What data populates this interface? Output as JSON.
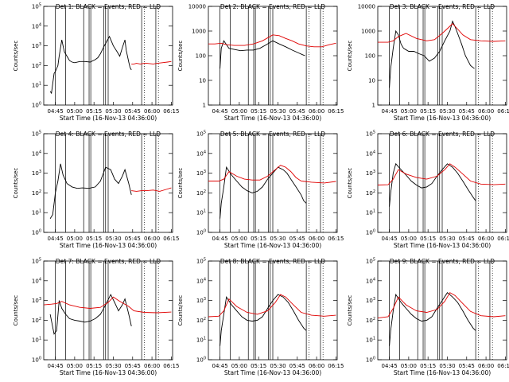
{
  "figure": {
    "xlabel": "Start Time (16-Nov-13 04:36:00)",
    "ylabel": "Counts/sec",
    "xticks": [
      "04:45",
      "05:00",
      "05:15",
      "05:30",
      "05:45",
      "06:00",
      "06:15"
    ],
    "vertical_markers_min": [
      9,
      17,
      31,
      35.2,
      36.5,
      46.5,
      48,
      50,
      76,
      87
    ],
    "dotted_markers_min": [
      78,
      89
    ],
    "colors": {
      "events": "#000000",
      "lld": "#e00000",
      "axes": "#000000"
    }
  },
  "chart_data": [
    {
      "type": "line",
      "title": "Det 1: BLACK = Events, RED = LLD",
      "xlim_min": [
        0,
        100
      ],
      "ylog": true,
      "ylim": [
        1,
        100000
      ],
      "yticks": [
        "10^0",
        "10^1",
        "10^2",
        "10^3",
        "10^4",
        "10^5"
      ],
      "series": [
        {
          "name": "Events",
          "color": "#000000",
          "x": [
            5,
            6,
            8,
            9,
            11,
            12,
            14,
            16,
            18,
            20,
            22,
            24,
            28,
            32,
            36,
            40,
            42,
            44,
            47,
            51,
            54,
            57,
            59,
            61,
            63,
            64,
            66,
            67,
            68
          ],
          "y": [
            5,
            4,
            40,
            50,
            100,
            300,
            2000,
            500,
            300,
            180,
            150,
            140,
            160,
            160,
            150,
            200,
            250,
            400,
            1000,
            3000,
            1000,
            500,
            300,
            800,
            2000,
            600,
            150,
            80,
            60
          ]
        },
        {
          "name": "LLD",
          "color": "#e00000",
          "x": [
            68,
            70,
            72,
            75,
            78,
            80,
            85,
            88,
            92,
            96,
            99
          ],
          "y": [
            120,
            120,
            130,
            120,
            130,
            130,
            120,
            130,
            140,
            150,
            160
          ]
        }
      ]
    },
    {
      "type": "line",
      "title": "Det 2: BLACK = Events, RED = LLD",
      "xlim_min": [
        0,
        100
      ],
      "ylog": true,
      "ylim": [
        1,
        10000
      ],
      "yticks": [
        "1",
        "10",
        "100",
        "1000",
        "10000"
      ],
      "series": [
        {
          "name": "Events",
          "color": "#000000",
          "x": [
            9,
            10,
            12,
            16,
            20,
            25,
            30,
            35,
            40,
            45,
            50,
            55,
            60,
            65,
            70,
            73,
            75
          ],
          "y": [
            30,
            200,
            400,
            200,
            180,
            160,
            170,
            170,
            200,
            280,
            400,
            300,
            230,
            170,
            130,
            110,
            100
          ]
        },
        {
          "name": "LLD",
          "color": "#e00000",
          "x": [
            0,
            5,
            10,
            14,
            20,
            28,
            35,
            42,
            50,
            55,
            60,
            65,
            70,
            76,
            82,
            88,
            94,
            99
          ],
          "y": [
            300,
            300,
            320,
            280,
            260,
            260,
            300,
            400,
            700,
            650,
            500,
            400,
            300,
            250,
            230,
            230,
            280,
            320
          ]
        }
      ]
    },
    {
      "type": "line",
      "title": "Det 3: BLACK = Events, RED = LLD",
      "xlim_min": [
        0,
        100
      ],
      "ylog": true,
      "ylim": [
        1,
        10000
      ],
      "yticks": [
        "1",
        "10",
        "100",
        "1000",
        "10000"
      ],
      "series": [
        {
          "name": "Events",
          "color": "#000000",
          "x": [
            9,
            10,
            12,
            14,
            16,
            18,
            20,
            24,
            28,
            32,
            36,
            40,
            44,
            48,
            52,
            56,
            58,
            60,
            62,
            65,
            68,
            72,
            75
          ],
          "y": [
            5,
            30,
            200,
            1000,
            700,
            300,
            200,
            150,
            150,
            120,
            100,
            60,
            80,
            150,
            400,
            1000,
            2500,
            1500,
            800,
            300,
            100,
            40,
            30
          ]
        },
        {
          "name": "LLD",
          "color": "#e00000",
          "x": [
            0,
            8,
            12,
            16,
            22,
            30,
            38,
            44,
            50,
            55,
            58,
            62,
            66,
            72,
            80,
            90,
            99
          ],
          "y": [
            350,
            350,
            400,
            600,
            800,
            500,
            400,
            450,
            800,
            1400,
            2000,
            1200,
            700,
            450,
            400,
            380,
            400
          ]
        }
      ]
    },
    {
      "type": "line",
      "title": "Det 4: BLACK = Events, RED = LLD",
      "xlim_min": [
        0,
        100
      ],
      "ylog": true,
      "ylim": [
        1,
        100000
      ],
      "yticks": [
        "10^0",
        "10^1",
        "10^2",
        "10^3",
        "10^4",
        "10^5"
      ],
      "series": [
        {
          "name": "Events",
          "color": "#000000",
          "x": [
            5,
            7,
            9,
            11,
            13,
            15,
            18,
            22,
            26,
            30,
            35,
            40,
            44,
            48,
            52,
            55,
            58,
            61,
            63,
            66,
            68
          ],
          "y": [
            5,
            8,
            100,
            400,
            3000,
            800,
            300,
            200,
            170,
            180,
            170,
            200,
            400,
            2000,
            1500,
            500,
            300,
            700,
            1500,
            300,
            80
          ]
        },
        {
          "name": "LLD",
          "color": "#e00000",
          "x": [
            68,
            72,
            76,
            80,
            85,
            90,
            95,
            99
          ],
          "y": [
            130,
            120,
            130,
            130,
            140,
            120,
            150,
            180
          ]
        }
      ]
    },
    {
      "type": "line",
      "title": "Det 5: BLACK = Events, RED = LLD",
      "xlim_min": [
        0,
        100
      ],
      "ylog": true,
      "ylim": [
        1,
        100000
      ],
      "yticks": [
        "10^0",
        "10^1",
        "10^2",
        "10^3",
        "10^4",
        "10^5"
      ],
      "series": [
        {
          "name": "Events",
          "color": "#000000",
          "x": [
            9,
            10,
            12,
            14,
            18,
            22,
            26,
            30,
            34,
            38,
            42,
            46,
            50,
            54,
            58,
            61,
            64,
            68,
            72,
            74,
            76
          ],
          "y": [
            5,
            30,
            200,
            2000,
            800,
            400,
            200,
            130,
            100,
            120,
            200,
            500,
            1000,
            2000,
            1500,
            1000,
            500,
            200,
            80,
            40,
            30
          ]
        },
        {
          "name": "LLD",
          "color": "#e00000",
          "x": [
            0,
            8,
            12,
            16,
            22,
            28,
            34,
            40,
            46,
            52,
            56,
            60,
            64,
            68,
            72,
            80,
            90,
            99
          ],
          "y": [
            400,
            400,
            500,
            1200,
            700,
            500,
            450,
            450,
            700,
            1500,
            2500,
            2000,
            1200,
            600,
            400,
            350,
            320,
            380
          ]
        }
      ]
    },
    {
      "type": "line",
      "title": "Det 6: BLACK = Events, RED = LLD",
      "xlim_min": [
        0,
        100
      ],
      "ylog": true,
      "ylim": [
        1,
        100000
      ],
      "yticks": [
        "10^0",
        "10^1",
        "10^2",
        "10^3",
        "10^4",
        "10^5"
      ],
      "series": [
        {
          "name": "Events",
          "color": "#000000",
          "x": [
            9,
            10,
            12,
            14,
            18,
            22,
            26,
            30,
            34,
            38,
            42,
            46,
            50,
            54,
            58,
            62,
            66,
            70,
            74,
            76
          ],
          "y": [
            20,
            100,
            1000,
            3000,
            1500,
            800,
            400,
            250,
            180,
            200,
            300,
            700,
            1500,
            3000,
            2000,
            1000,
            400,
            150,
            60,
            40
          ]
        },
        {
          "name": "LLD",
          "color": "#e00000",
          "x": [
            0,
            8,
            12,
            16,
            22,
            30,
            38,
            46,
            52,
            56,
            60,
            66,
            72,
            80,
            90,
            99
          ],
          "y": [
            250,
            260,
            500,
            1500,
            900,
            600,
            500,
            700,
            1500,
            3000,
            2000,
            900,
            400,
            280,
            260,
            280
          ]
        }
      ]
    },
    {
      "type": "line",
      "title": "Det 7: BLACK = Events, RED = LLD",
      "xlim_min": [
        0,
        100
      ],
      "ylog": true,
      "ylim": [
        1,
        100000
      ],
      "yticks": [
        "10^0",
        "10^1",
        "10^2",
        "10^3",
        "10^4",
        "10^5"
      ],
      "series": [
        {
          "name": "Events",
          "color": "#000000",
          "x": [
            5,
            8,
            10,
            12,
            14,
            17,
            20,
            24,
            28,
            32,
            36,
            40,
            44,
            48,
            52,
            55,
            58,
            61,
            63,
            66,
            68
          ],
          "y": [
            200,
            20,
            30,
            1000,
            400,
            200,
            120,
            100,
            90,
            80,
            90,
            120,
            200,
            600,
            2000,
            800,
            300,
            600,
            1200,
            200,
            50
          ]
        },
        {
          "name": "LLD",
          "color": "#e00000",
          "x": [
            0,
            6,
            10,
            14,
            20,
            28,
            36,
            44,
            50,
            54,
            58,
            62,
            66,
            70,
            78,
            88,
            99
          ],
          "y": [
            600,
            650,
            700,
            900,
            600,
            450,
            400,
            450,
            800,
            1500,
            1000,
            700,
            500,
            300,
            250,
            240,
            260
          ]
        }
      ]
    },
    {
      "type": "line",
      "title": "Det 8: BLACK = Events, RED = LLD",
      "xlim_min": [
        0,
        100
      ],
      "ylog": true,
      "ylim": [
        1,
        100000
      ],
      "yticks": [
        "10^0",
        "10^1",
        "10^2",
        "10^3",
        "10^4",
        "10^5"
      ],
      "series": [
        {
          "name": "Events",
          "color": "#000000",
          "x": [
            9,
            10,
            12,
            14,
            18,
            22,
            26,
            30,
            34,
            38,
            42,
            46,
            50,
            54,
            58,
            62,
            66,
            70,
            74,
            76
          ],
          "y": [
            5,
            30,
            200,
            1500,
            600,
            300,
            150,
            100,
            90,
            100,
            150,
            400,
            1000,
            2000,
            1500,
            800,
            300,
            100,
            40,
            30
          ]
        },
        {
          "name": "LLD",
          "color": "#e00000",
          "x": [
            0,
            8,
            12,
            16,
            22,
            30,
            38,
            46,
            52,
            56,
            60,
            66,
            72,
            80,
            90,
            99
          ],
          "y": [
            150,
            160,
            300,
            1200,
            500,
            250,
            200,
            300,
            800,
            2000,
            1500,
            600,
            250,
            180,
            160,
            180
          ]
        }
      ]
    },
    {
      "type": "line",
      "title": "Det 9: BLACK = Events, RED = LLD",
      "xlim_min": [
        0,
        100
      ],
      "ylog": true,
      "ylim": [
        1,
        100000
      ],
      "yticks": [
        "10^0",
        "10^1",
        "10^2",
        "10^3",
        "10^4",
        "10^5"
      ],
      "series": [
        {
          "name": "Events",
          "color": "#000000",
          "x": [
            9,
            10,
            12,
            14,
            18,
            22,
            26,
            30,
            34,
            38,
            42,
            46,
            50,
            54,
            58,
            62,
            66,
            70,
            74,
            76
          ],
          "y": [
            5,
            30,
            300,
            2000,
            800,
            400,
            200,
            120,
            90,
            100,
            150,
            400,
            1000,
            2500,
            1500,
            800,
            300,
            100,
            40,
            30
          ]
        },
        {
          "name": "LLD",
          "color": "#e00000",
          "x": [
            0,
            8,
            12,
            16,
            22,
            30,
            38,
            46,
            52,
            56,
            60,
            66,
            72,
            80,
            90,
            99
          ],
          "y": [
            130,
            150,
            400,
            1500,
            600,
            300,
            250,
            350,
            900,
            2500,
            1800,
            700,
            280,
            170,
            150,
            170
          ]
        }
      ]
    }
  ]
}
